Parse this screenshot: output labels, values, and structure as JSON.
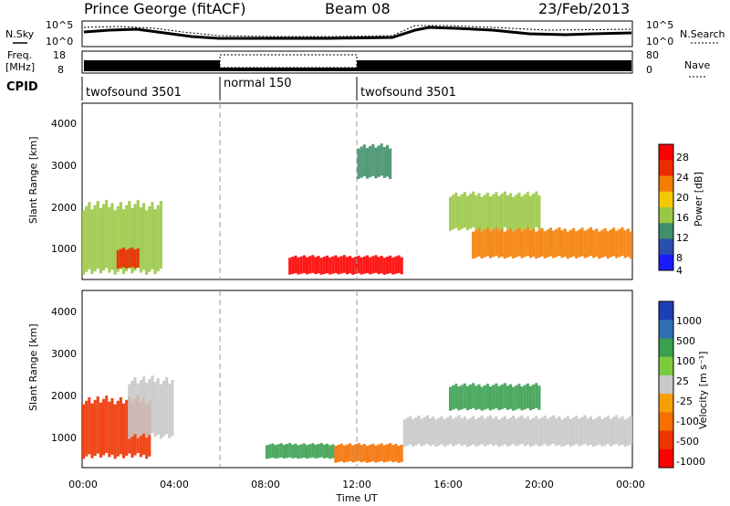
{
  "header": {
    "radar": "Prince George (fitACF)",
    "beam": "Beam 08",
    "date": "23/Feb/2013"
  },
  "nsky_panel": {
    "left_label": "N.Sky",
    "right_label": "N.Search",
    "left_ticks": [
      "10^5",
      "10^0"
    ],
    "right_ticks": [
      "10^5",
      "10^0"
    ]
  },
  "freq_panel": {
    "left_label_1": "Freq.",
    "left_label_2": "[MHz]",
    "left_ticks": [
      "18",
      "8"
    ],
    "right_ticks": [
      "80",
      "0"
    ],
    "right_label": "Nave"
  },
  "cpid_panel": {
    "label": "CPID",
    "segments": [
      {
        "name": "twofsound 3501",
        "start_h": 0,
        "end_h": 6
      },
      {
        "name": "normal 150",
        "start_h": 6,
        "end_h": 12
      },
      {
        "name": "twofsound 3501",
        "start_h": 12,
        "end_h": 24
      }
    ]
  },
  "power_panel": {
    "ylabel": "Slant Range [km]",
    "yticks": [
      "4000",
      "3000",
      "2000",
      "1000"
    ],
    "colorbar_label": "Power [dB]",
    "colorbar_ticks": [
      "28",
      "24",
      "20",
      "16",
      "12",
      "8",
      "4"
    ],
    "colors": [
      "#1a1aff",
      "#2a4fb0",
      "#3f8f6a",
      "#9ac845",
      "#f5c800",
      "#f57d00",
      "#ee2b00",
      "#ff0000"
    ]
  },
  "velocity_panel": {
    "ylabel": "Slant Range [km]",
    "yticks": [
      "4000",
      "3000",
      "2000",
      "1000"
    ],
    "colorbar_label": "Velocity [m s⁻¹]",
    "colorbar_ticks": [
      "1000",
      "500",
      "100",
      "25",
      "-25",
      "-100",
      "-500",
      "-1000"
    ],
    "colors": [
      "#1d3fb5",
      "#2e6fb5",
      "#3aa050",
      "#7acc3c",
      "#c8c8c8",
      "#f5a000",
      "#f57000",
      "#ee3300",
      "#ff0000"
    ]
  },
  "xaxis": {
    "ticks": [
      "00:00",
      "04:00",
      "08:00",
      "12:00",
      "16:00",
      "20:00",
      "00:00"
    ],
    "label": "Time UT"
  },
  "chart_data": {
    "type": "heatmap",
    "x_range_hours": [
      0,
      24
    ],
    "y_range_km": [
      180,
      4600
    ],
    "power_regions": [
      {
        "t0": 0,
        "t1": 3.5,
        "r0": 300,
        "r1": 2200,
        "level": 12
      },
      {
        "t0": 1.5,
        "t1": 2.5,
        "r0": 450,
        "r1": 1000,
        "level": 24
      },
      {
        "t0": 9,
        "t1": 14,
        "r0": 300,
        "r1": 800,
        "level": 28
      },
      {
        "t0": 16,
        "t1": 20,
        "r0": 1400,
        "r1": 2400,
        "level": 12
      },
      {
        "t0": 17,
        "t1": 24,
        "r0": 700,
        "r1": 1500,
        "level": 20
      },
      {
        "t0": 12,
        "t1": 13.5,
        "r0": 2700,
        "r1": 3600,
        "level": 8
      }
    ],
    "velocity_regions": [
      {
        "t0": 0,
        "t1": 3,
        "r0": 400,
        "r1": 2000,
        "value": -500
      },
      {
        "t0": 2,
        "t1": 4,
        "r0": 900,
        "r1": 2500,
        "value": 0
      },
      {
        "t0": 8,
        "t1": 11,
        "r0": 400,
        "r1": 800,
        "value": 100
      },
      {
        "t0": 11,
        "t1": 14,
        "r0": 300,
        "r1": 800,
        "value": -100
      },
      {
        "t0": 16,
        "t1": 20,
        "r0": 1600,
        "r1": 2300,
        "value": 100
      },
      {
        "t0": 14,
        "t1": 24,
        "r0": 700,
        "r1": 1500,
        "value": 0
      }
    ]
  }
}
